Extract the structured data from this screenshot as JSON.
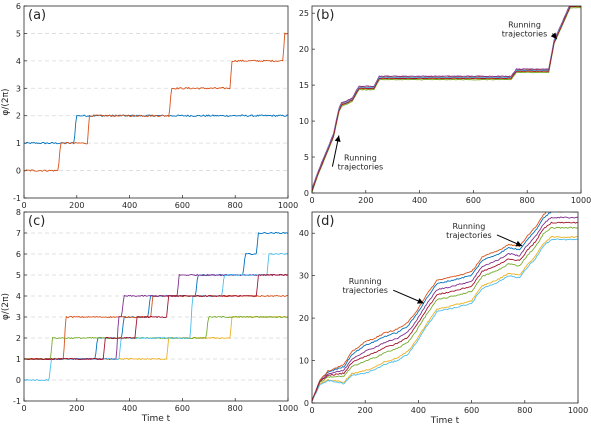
{
  "colors": {
    "blue": "#0072BD",
    "orange": "#D95319",
    "yellow": "#EDB120",
    "purple": "#7E2F8E",
    "green": "#77AC30",
    "cyan": "#4DBEEE",
    "red": "#A2142F",
    "grid": "#d9d9d9",
    "axis": "#262626"
  },
  "chart_data": [
    {
      "panel_label": "(a)",
      "type": "line",
      "ylabel": "φ/(2π)",
      "xlim": [
        0,
        1000
      ],
      "ylim": [
        -1,
        6
      ],
      "xticks": [
        "0",
        "200",
        "400",
        "600",
        "800",
        "1000"
      ],
      "yticks": [
        "-1",
        "0",
        "1",
        "2",
        "3",
        "4",
        "5",
        "6"
      ],
      "grid": "horizontal dashed",
      "series": [
        {
          "color": "blue",
          "noise": 0.03,
          "steps": [
            [
              0,
              1
            ],
            [
              190,
              2
            ]
          ]
        },
        {
          "color": "orange",
          "noise": 0.03,
          "steps": [
            [
              0,
              0
            ],
            [
              130,
              1
            ],
            [
              240,
              2
            ],
            [
              550,
              3
            ],
            [
              780,
              4
            ],
            [
              980,
              5
            ]
          ]
        }
      ]
    },
    {
      "panel_label": "(b)",
      "type": "line",
      "xlim": [
        0,
        1000
      ],
      "ylim": [
        0,
        26
      ],
      "xticks": [
        "0",
        "200",
        "400",
        "600",
        "800",
        "1000"
      ],
      "yticks": [
        "0",
        "5",
        "10",
        "15",
        "20",
        "25"
      ],
      "grid": "none",
      "series_profile": [
        [
          0,
          0.3
        ],
        [
          20,
          2.5
        ],
        [
          80,
          8
        ],
        [
          100,
          11.5
        ],
        [
          110,
          12.3
        ],
        [
          130,
          12.6
        ],
        [
          150,
          13
        ],
        [
          165,
          14
        ],
        [
          175,
          14.6
        ],
        [
          230,
          14.6
        ],
        [
          250,
          16
        ],
        [
          740,
          16
        ],
        [
          760,
          17
        ],
        [
          880,
          17
        ],
        [
          900,
          21
        ],
        [
          960,
          26
        ],
        [
          1000,
          26
        ]
      ],
      "series": [
        {
          "color": "blue",
          "offset": 0
        },
        {
          "color": "orange",
          "offset": 0.12
        },
        {
          "color": "yellow",
          "offset": -0.12
        },
        {
          "color": "purple",
          "offset": 0.24
        },
        {
          "color": "green",
          "offset": -0.24
        },
        {
          "color": "cyan",
          "offset": 0.06
        },
        {
          "color": "red",
          "offset": -0.06
        }
      ],
      "annotations": [
        {
          "text": [
            "Running",
            "trajectories"
          ],
          "pos": [
            790,
            23
          ],
          "arrow_to": [
            910,
            21.4
          ]
        },
        {
          "text": [
            "Running",
            "trajectories"
          ],
          "pos": [
            180,
            4.5
          ],
          "arrow_to": [
            100,
            8
          ]
        }
      ]
    },
    {
      "panel_label": "(c)",
      "type": "line",
      "ylabel": "φ/(2π)",
      "xlabel": "Time t",
      "xlim": [
        0,
        1000
      ],
      "ylim": [
        -1,
        8
      ],
      "xticks": [
        "0",
        "200",
        "400",
        "600",
        "800",
        "1000"
      ],
      "yticks": [
        "-1",
        "0",
        "1",
        "2",
        "3",
        "4",
        "5",
        "6",
        "7",
        "8"
      ],
      "grid": "horizontal dashed",
      "series": [
        {
          "color": "blue",
          "noise": 0.03,
          "steps": [
            [
              0,
              1
            ],
            [
              270,
              2
            ],
            [
              370,
              3
            ],
            [
              470,
              4
            ],
            [
              650,
              5
            ],
            [
              830,
              6
            ],
            [
              880,
              7
            ]
          ]
        },
        {
          "color": "orange",
          "noise": 0.03,
          "steps": [
            [
              0,
              1
            ],
            [
              150,
              3
            ],
            [
              480,
              4
            ]
          ]
        },
        {
          "color": "yellow",
          "noise": 0.03,
          "steps": [
            [
              0,
              1
            ],
            [
              540,
              2
            ],
            [
              780,
              3
            ]
          ]
        },
        {
          "color": "purple",
          "noise": 0.03,
          "steps": [
            [
              0,
              1
            ],
            [
              350,
              3
            ],
            [
              370,
              4
            ],
            [
              580,
              5
            ]
          ]
        },
        {
          "color": "green",
          "noise": 0.03,
          "steps": [
            [
              0,
              1
            ],
            [
              100,
              2
            ],
            [
              690,
              3
            ]
          ]
        },
        {
          "color": "cyan",
          "noise": 0.03,
          "steps": [
            [
              0,
              0
            ],
            [
              95,
              1
            ],
            [
              360,
              2
            ],
            [
              630,
              4
            ],
            [
              750,
              5
            ],
            [
              920,
              6
            ]
          ]
        },
        {
          "color": "red",
          "noise": 0.03,
          "steps": [
            [
              0,
              1
            ],
            [
              300,
              2
            ],
            [
              420,
              3
            ],
            [
              540,
              4
            ],
            [
              880,
              5
            ]
          ]
        }
      ]
    },
    {
      "panel_label": "(d)",
      "type": "line",
      "xlabel": "Time t",
      "xlim": [
        0,
        1000
      ],
      "ylim": [
        0,
        45
      ],
      "xticks": [
        "0",
        "200",
        "400",
        "600",
        "800",
        "1000"
      ],
      "yticks": [
        "0",
        "10",
        "20",
        "30",
        "40"
      ],
      "grid": "none",
      "series_profile": [
        [
          0,
          0.5
        ],
        [
          30,
          5
        ],
        [
          60,
          6.5
        ],
        [
          120,
          7
        ],
        [
          150,
          9.5
        ],
        [
          200,
          11
        ],
        [
          240,
          12
        ],
        [
          270,
          13
        ],
        [
          320,
          14
        ],
        [
          360,
          15.5
        ],
        [
          390,
          18
        ],
        [
          430,
          22
        ],
        [
          470,
          25.5
        ],
        [
          540,
          26.5
        ],
        [
          600,
          27.5
        ],
        [
          640,
          31
        ],
        [
          700,
          32.5
        ],
        [
          740,
          34
        ],
        [
          780,
          33.5
        ],
        [
          810,
          36
        ],
        [
          840,
          38
        ],
        [
          870,
          41
        ],
        [
          900,
          42.5
        ],
        [
          960,
          42.5
        ],
        [
          1000,
          42.5
        ]
      ],
      "series": [
        {
          "color": "blue",
          "offset": 2.6,
          "tshift": 0
        },
        {
          "color": "orange",
          "offset": 3.4,
          "tshift": 0
        },
        {
          "color": "yellow",
          "offset": -3.4,
          "tshift": 0
        },
        {
          "color": "purple",
          "offset": 1.2,
          "tshift": 0
        },
        {
          "color": "green",
          "offset": -1.2,
          "tshift": 0
        },
        {
          "color": "cyan",
          "offset": -4.0,
          "tshift": 0
        },
        {
          "color": "red",
          "offset": 0.0,
          "tshift": 0
        }
      ],
      "annotations": [
        {
          "text": [
            "Running",
            "trajectories"
          ],
          "pos": [
            590,
            41
          ],
          "arrow_to": [
            790,
            37
          ]
        },
        {
          "text": [
            "Running",
            "trajectories"
          ],
          "pos": [
            200,
            28
          ],
          "arrow_to": [
            420,
            23.5
          ]
        }
      ]
    }
  ]
}
